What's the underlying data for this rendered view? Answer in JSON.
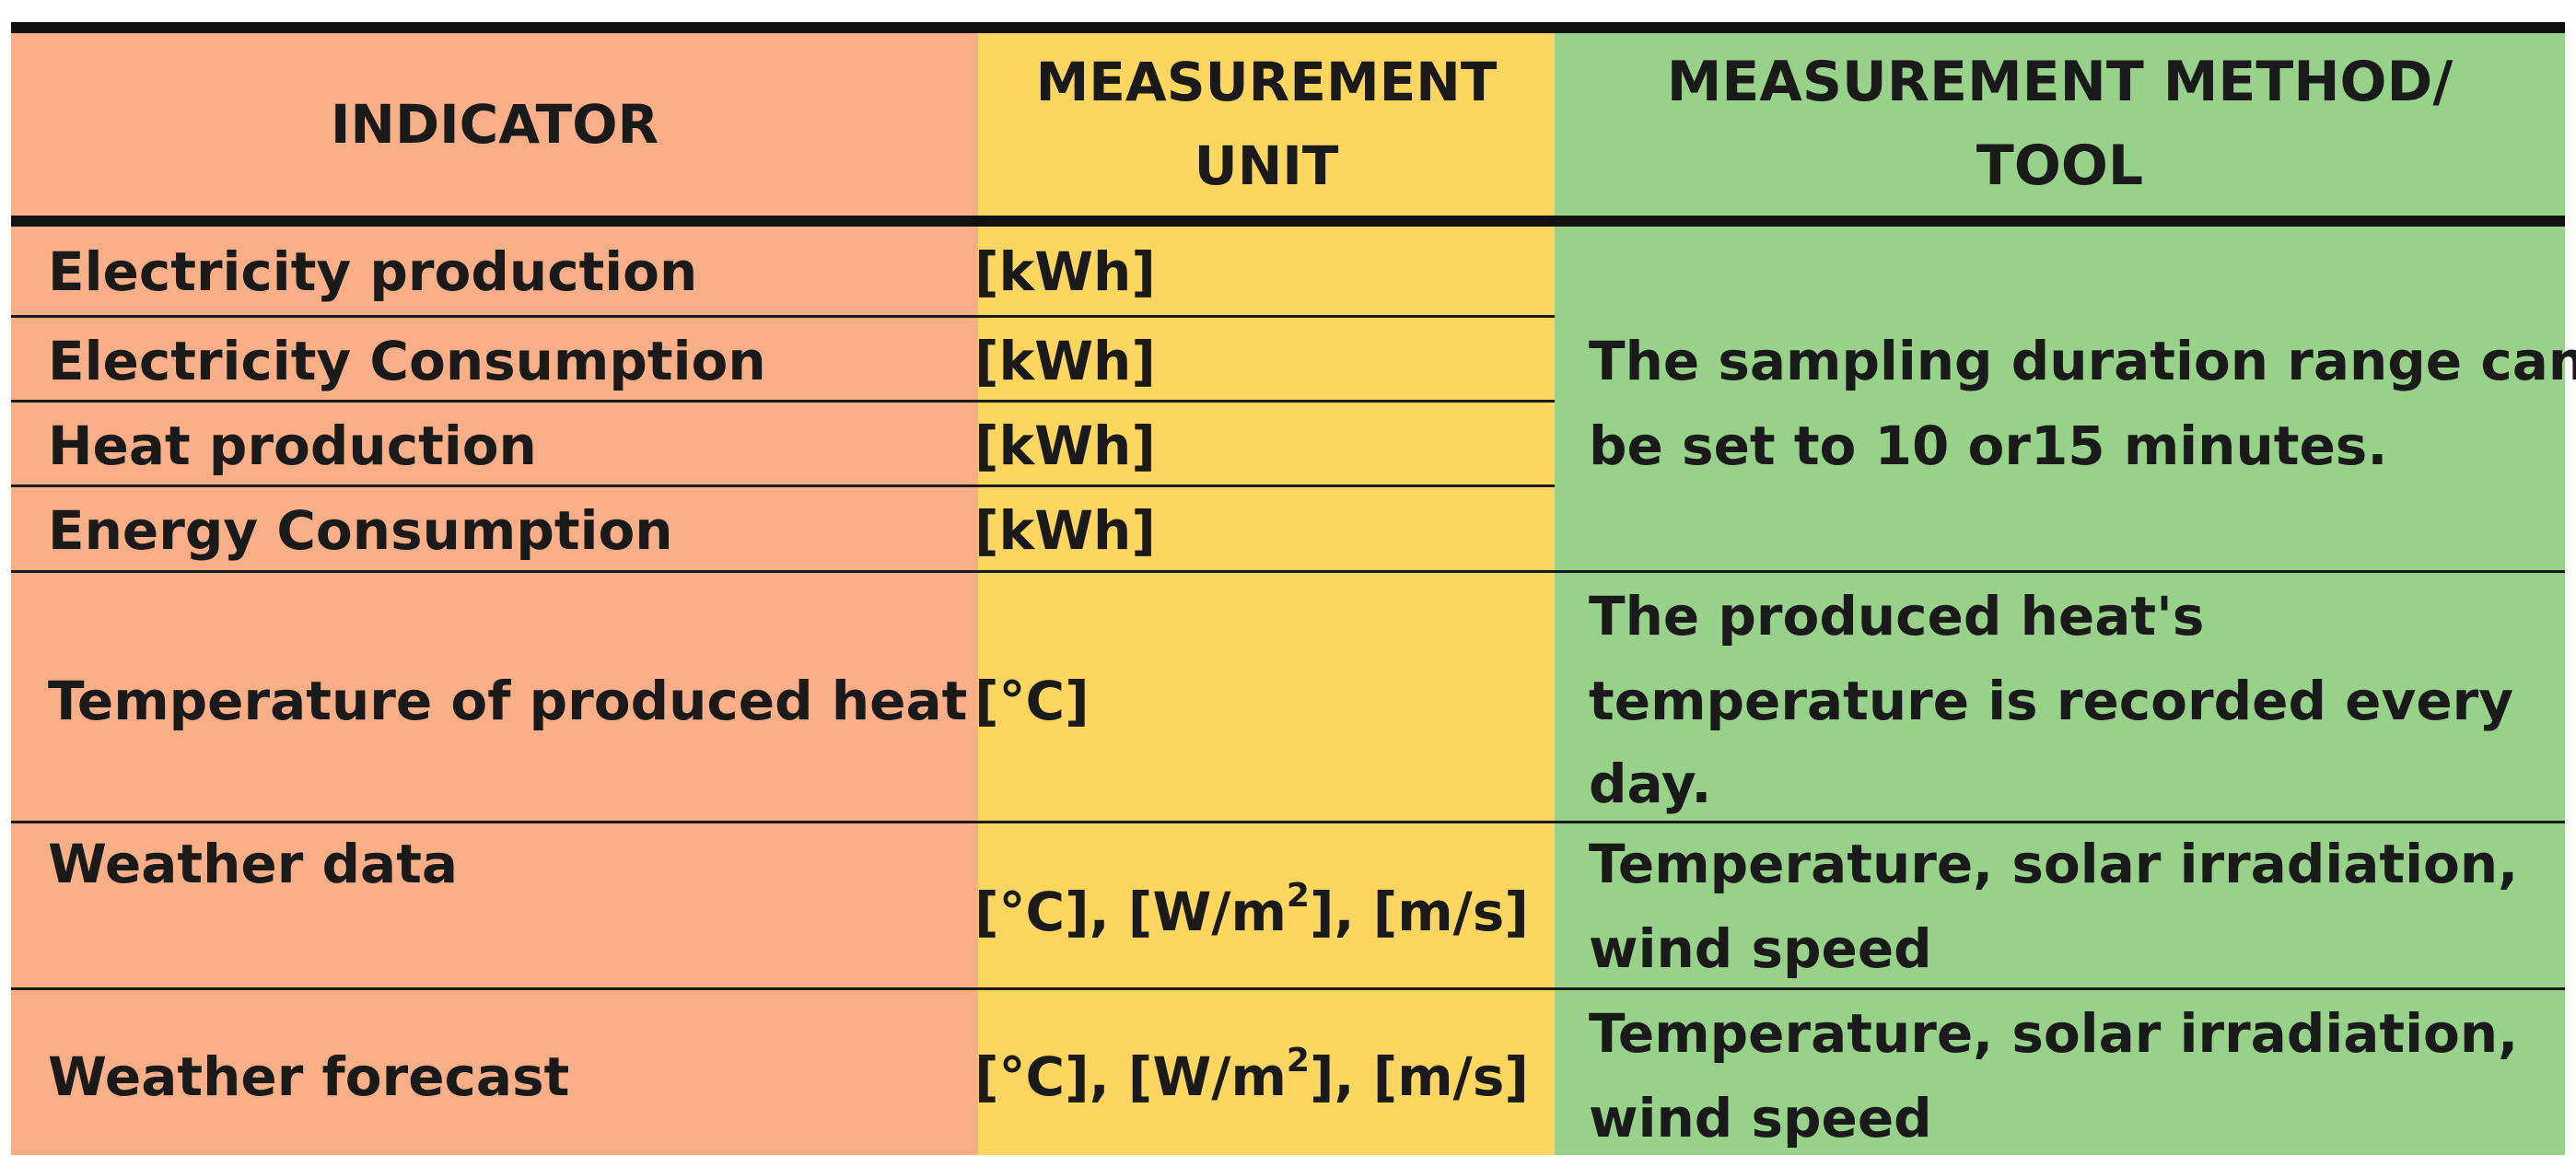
{
  "header": {
    "indicator": "INDICATOR",
    "unit_line1": "MEASUREMENT",
    "unit_line2": "UNIT",
    "method_line1": "MEASUREMENT METHOD/",
    "method_line2": "TOOL"
  },
  "rows": [
    {
      "indicator": "Electricity production",
      "unit": "[kWh]"
    },
    {
      "indicator": "Electricity Consumption",
      "unit": "[kWh]"
    },
    {
      "indicator": "Heat production",
      "unit": "[kWh]"
    },
    {
      "indicator": "Energy Consumption",
      "unit": "[kWh]"
    },
    {
      "indicator": "Temperature of produced heat",
      "unit": "[°C]"
    },
    {
      "indicator": "Weather data",
      "unit_pre": "[°C], [W/m",
      "unit_sup": "2",
      "unit_post": "], [m/s]"
    },
    {
      "indicator": "Weather forecast",
      "unit_pre": "[°C], [W/m",
      "unit_sup": "2",
      "unit_post": "], [m/s]"
    }
  ],
  "methods": {
    "sampling_line1": "The sampling duration range can",
    "sampling_line2": "be set to 10 or15 minutes.",
    "temp_line1": "The produced heat's",
    "temp_line2": "temperature is recorded every",
    "temp_line3": "day.",
    "weather_data_line1": "Temperature, solar irradiation,",
    "weather_data_line2": "wind speed",
    "weather_forecast_line1": "Temperature, solar irradiation,",
    "weather_forecast_line2": "wind speed"
  },
  "colors": {
    "indicator_column": "#F8AE86",
    "unit_column": "#FCD65F",
    "method_column": "#98D189",
    "border": "#1a1a1a"
  }
}
